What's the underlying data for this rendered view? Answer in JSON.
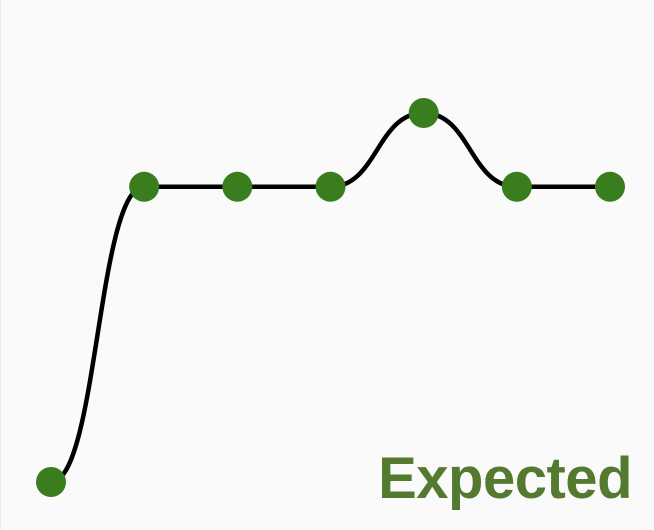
{
  "colors": {
    "background": "#fafafa",
    "line": "#000000",
    "point": "#3a7d1f",
    "label": "#547a30"
  },
  "label": "Expected",
  "chart_data": {
    "type": "line",
    "interpolation": "smooth",
    "title": "",
    "xlabel": "",
    "ylabel": "",
    "grid": false,
    "axes_visible": false,
    "x": [
      0,
      1,
      2,
      3,
      4,
      5,
      6
    ],
    "series": [
      {
        "values": [
          0,
          1,
          1,
          1,
          1.25,
          1,
          1
        ]
      }
    ],
    "xlim": [
      0,
      6
    ],
    "ylim": [
      0,
      1.25
    ]
  }
}
